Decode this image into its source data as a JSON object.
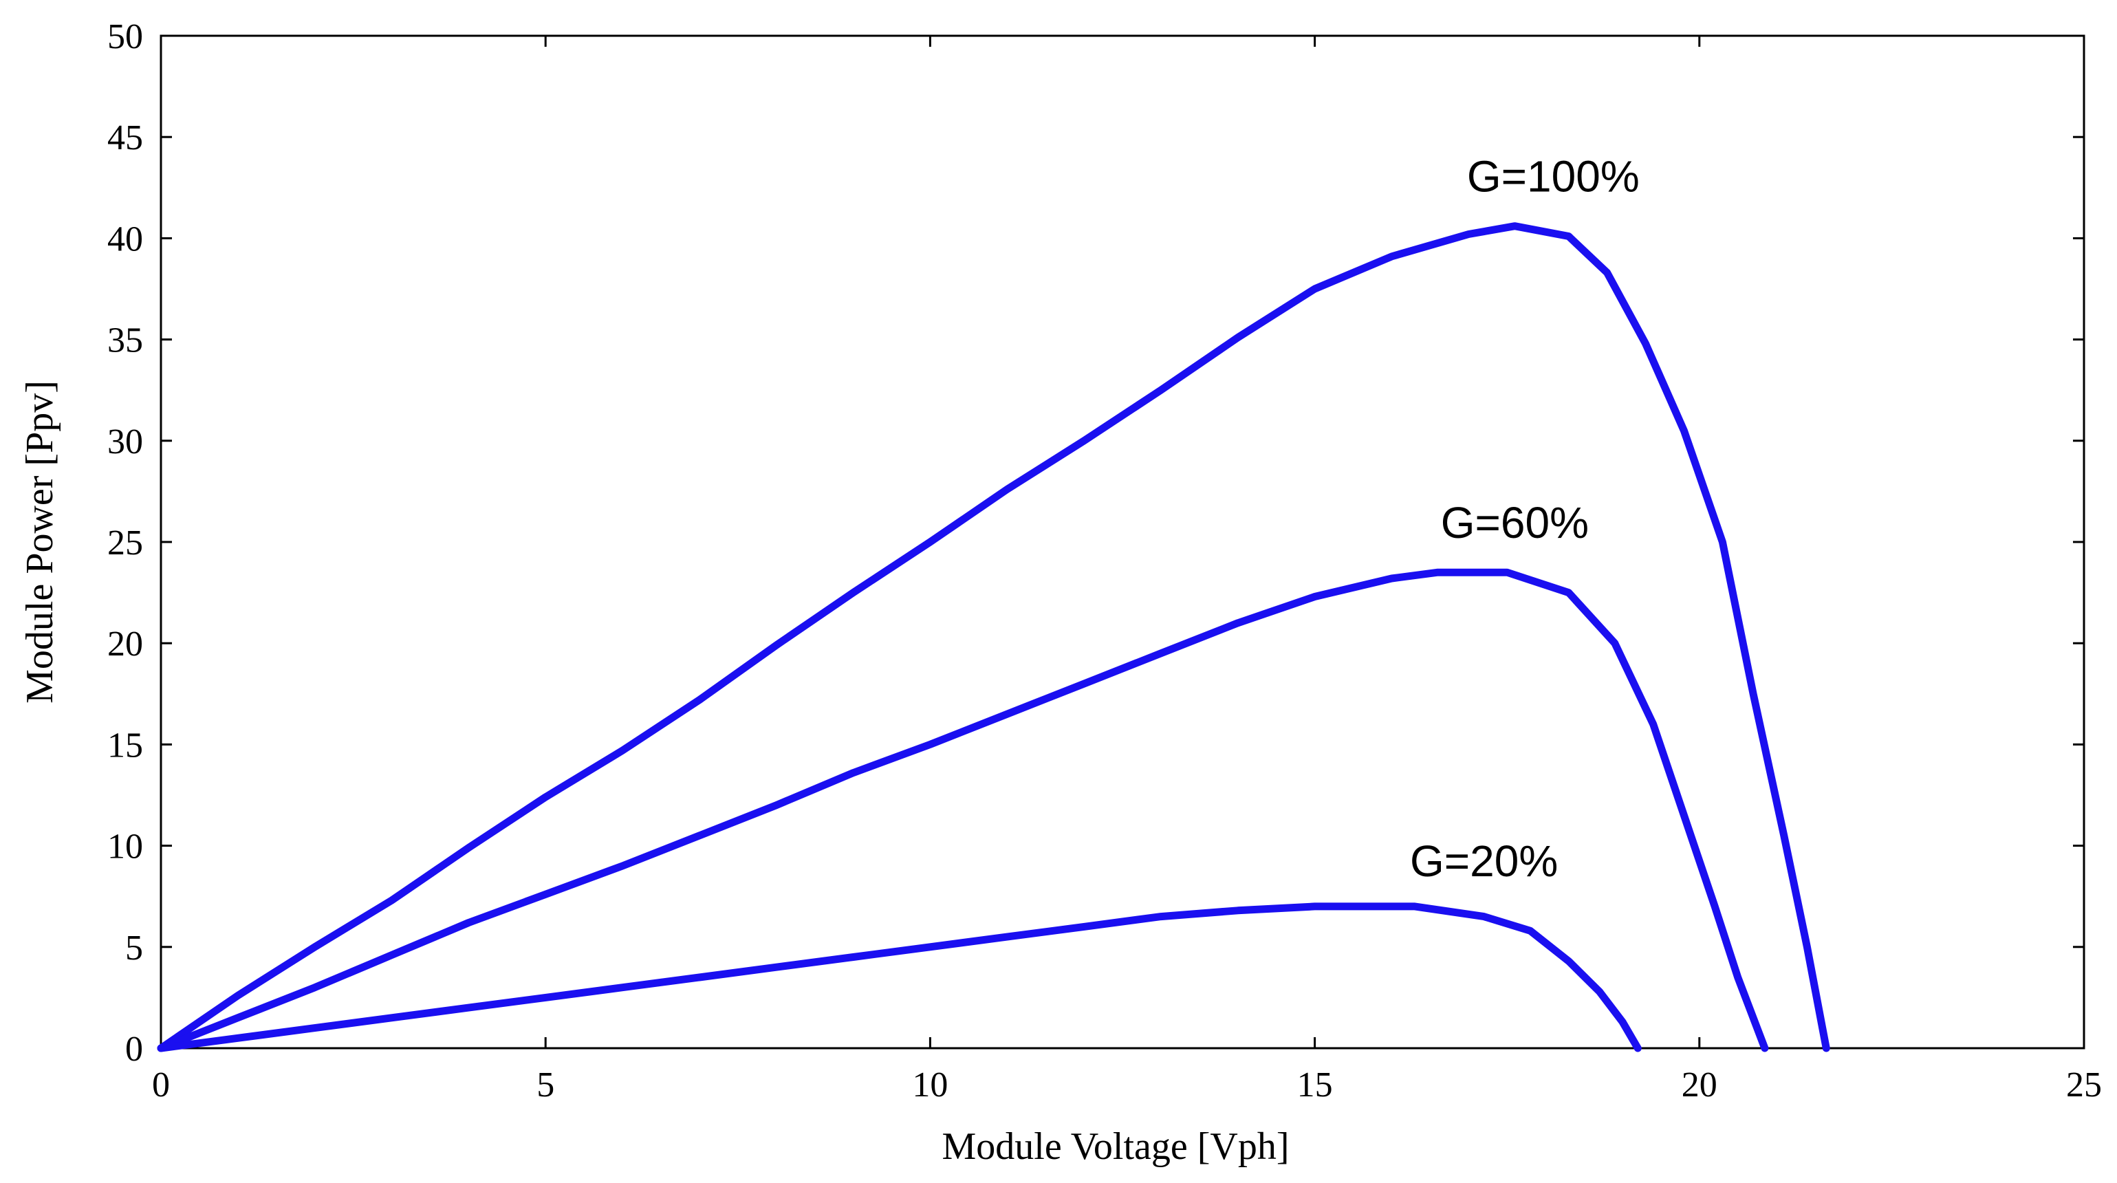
{
  "chart_data": {
    "type": "line",
    "title": "",
    "xlabel": "Module Voltage [Vph]",
    "ylabel": "Module Power [Ppv]",
    "xlim": [
      0,
      25
    ],
    "ylim": [
      0,
      50
    ],
    "xticks": [
      0,
      5,
      10,
      15,
      20,
      25
    ],
    "yticks": [
      0,
      5,
      10,
      15,
      20,
      25,
      30,
      35,
      40,
      45,
      50
    ],
    "grid": false,
    "line_color": "#1a0ff0",
    "series": [
      {
        "name": "G=100%",
        "x": [
          0,
          1,
          2,
          3,
          4,
          5,
          6,
          7,
          8,
          9,
          10,
          11,
          12,
          13,
          14,
          15,
          16,
          17,
          17.6,
          18.3,
          18.8,
          19.3,
          19.8,
          20.3,
          20.7,
          21.1,
          21.4,
          21.6,
          21.65
        ],
        "y": [
          0,
          2.6,
          5.0,
          7.3,
          9.9,
          12.4,
          14.7,
          17.2,
          19.9,
          22.5,
          25.0,
          27.6,
          30.0,
          32.5,
          35.1,
          37.5,
          39.1,
          40.2,
          40.6,
          40.1,
          38.3,
          34.8,
          30.5,
          25.0,
          17.5,
          10.5,
          5.0,
          1.0,
          0
        ]
      },
      {
        "name": "G=60%",
        "x": [
          0,
          1,
          2,
          3,
          4,
          5,
          6,
          7,
          8,
          9,
          10,
          11,
          12,
          13,
          14,
          15,
          16,
          16.6,
          17.5,
          18.3,
          18.9,
          19.4,
          19.8,
          20.2,
          20.5,
          20.75,
          20.85
        ],
        "y": [
          0,
          1.5,
          3.0,
          4.6,
          6.2,
          7.6,
          9.0,
          10.5,
          12.0,
          13.6,
          15.0,
          16.5,
          18.0,
          19.5,
          21.0,
          22.3,
          23.2,
          23.5,
          23.5,
          22.5,
          20.0,
          16.0,
          11.5,
          7.0,
          3.5,
          1.0,
          0
        ]
      },
      {
        "name": "G=20%",
        "x": [
          0,
          1,
          2,
          3,
          4,
          5,
          6,
          7,
          8,
          9,
          10,
          11,
          12,
          13,
          14,
          15,
          16.3,
          17.2,
          17.8,
          18.3,
          18.7,
          19.0,
          19.2
        ],
        "y": [
          0,
          0.5,
          1.0,
          1.5,
          2.0,
          2.5,
          3.0,
          3.5,
          4.0,
          4.5,
          5.0,
          5.5,
          6.0,
          6.5,
          6.8,
          7.0,
          7.0,
          6.5,
          5.8,
          4.3,
          2.8,
          1.3,
          0
        ]
      }
    ],
    "annotations": [
      {
        "text": "G=100%",
        "x": 18.1,
        "y": 42.3
      },
      {
        "text": "G=60%",
        "x": 17.6,
        "y": 25.2
      },
      {
        "text": "G=20%",
        "x": 17.2,
        "y": 8.5
      }
    ]
  }
}
